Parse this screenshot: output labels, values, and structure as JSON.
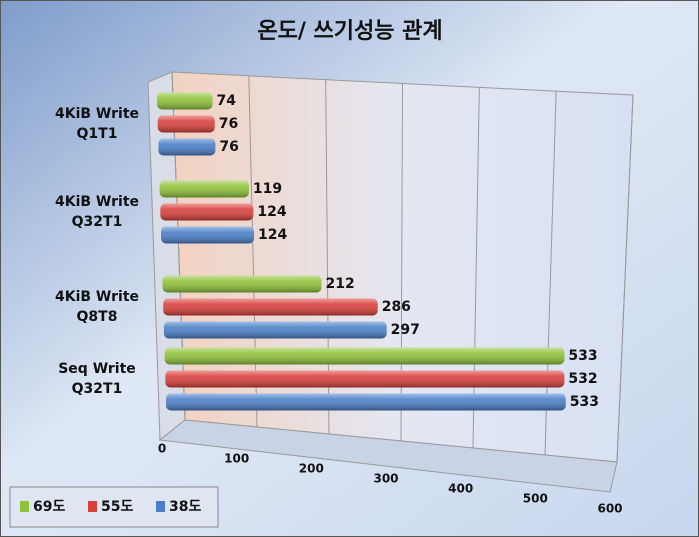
{
  "chart_data": {
    "type": "bar",
    "orientation": "horizontal",
    "title": "온도/ 쓰기성능 관계",
    "categories": [
      "4KiB Write\nQ1T1",
      "4KiB Write\nQ32T1",
      "4KiB Write\nQ8T8",
      "Seq Write\nQ32T1"
    ],
    "series": [
      {
        "name": "69도",
        "color": "#8fc33a",
        "values": [
          74,
          119,
          212,
          533
        ]
      },
      {
        "name": "55도",
        "color": "#d9403b",
        "values": [
          76,
          124,
          286,
          532
        ]
      },
      {
        "name": "38도",
        "color": "#4a7fc8",
        "values": [
          76,
          124,
          297,
          533
        ]
      }
    ],
    "xlim": [
      0,
      600
    ],
    "xticks": [
      0,
      100,
      200,
      300,
      400,
      500,
      600
    ],
    "grid": true,
    "legend": "bottom-left"
  }
}
